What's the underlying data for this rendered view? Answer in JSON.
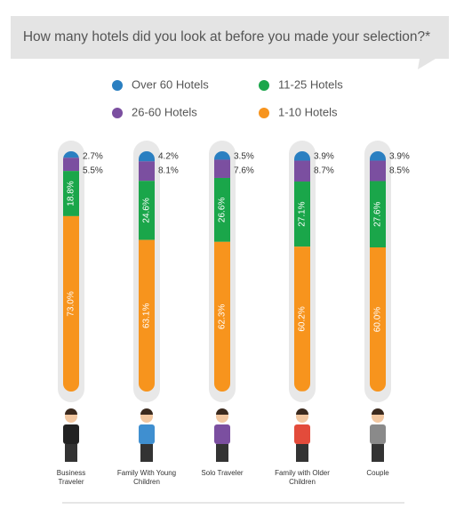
{
  "chart_data": {
    "type": "stacked_bar",
    "title": "How many hotels did you look at before you made your selection?*",
    "categories": [
      "Business Traveler",
      "Family With Young Children",
      "Solo Traveler",
      "Family with Older Children",
      "Couple"
    ],
    "series": [
      {
        "name": "Over 60 Hotels",
        "color": "#2a7fc1",
        "values": [
          2.7,
          4.2,
          3.5,
          3.9,
          3.9
        ],
        "value_labels": [
          "2.7%",
          "4.2%",
          "3.5%",
          "3.9%",
          "3.9%"
        ]
      },
      {
        "name": "26-60 Hotels",
        "color": "#7b4fa0",
        "values": [
          5.5,
          8.1,
          7.6,
          8.7,
          8.5
        ],
        "value_labels": [
          "5.5%",
          "8.1%",
          "7.6%",
          "8.7%",
          "8.5%"
        ]
      },
      {
        "name": "11-25 Hotels",
        "color": "#1aa64a",
        "values": [
          18.8,
          24.6,
          26.6,
          27.1,
          27.6
        ],
        "value_labels": [
          "18.8%",
          "24.6%",
          "26.6%",
          "27.1%",
          "27.6%"
        ]
      },
      {
        "name": "1-10 Hotels",
        "color": "#f7941d",
        "values": [
          73.0,
          63.1,
          62.3,
          60.2,
          60.0
        ],
        "value_labels": [
          "73.0%",
          "63.1%",
          "62.3%",
          "60.2%",
          "60.0%"
        ]
      }
    ]
  }
}
